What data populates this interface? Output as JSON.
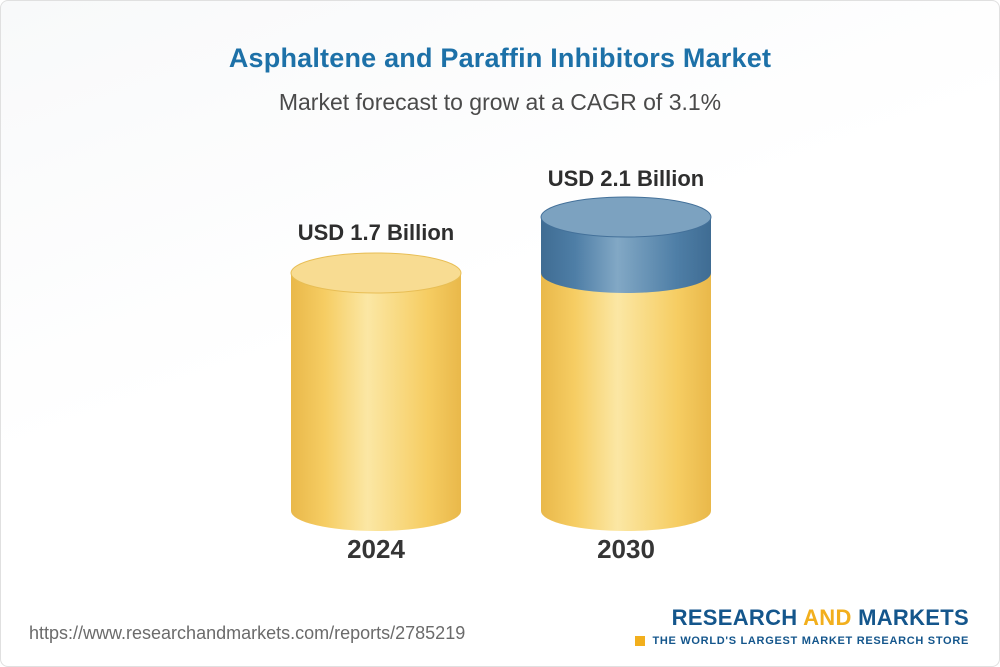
{
  "chart_data": {
    "type": "bar",
    "variant": "3d-cylinder",
    "title": "Asphaltene and Paraffin Inhibitors Market",
    "subtitle": "Market forecast to grow at a CAGR of 3.1%",
    "categories": [
      "2024",
      "2030"
    ],
    "values": [
      1.7,
      2.1
    ],
    "value_labels": [
      "USD 1.7 Billion",
      "USD 2.1 Billion"
    ],
    "unit": "USD Billion",
    "cagr": "3.1%",
    "ylim": [
      0,
      2.1
    ],
    "legend": "none",
    "grid": "off",
    "bars": [
      {
        "category": "2024",
        "label": "USD 1.7 Billion",
        "segments": [
          {
            "value": 1.7,
            "color_key": "gold"
          }
        ]
      },
      {
        "category": "2030",
        "label": "USD 2.1 Billion",
        "segments": [
          {
            "value": 1.7,
            "color_key": "gold"
          },
          {
            "value": 0.4,
            "color_key": "blue"
          }
        ]
      }
    ],
    "colors": {
      "gold": {
        "body_dark": "#E9B84A",
        "body": "#F6CD63",
        "body_light": "#FBE7A4",
        "top": "#F8DC92",
        "top_edge": "#E8BE55"
      },
      "blue": {
        "body_dark": "#3F6C93",
        "body": "#4E7EA6",
        "body_light": "#82A8C5",
        "top": "#7CA2C0",
        "top_edge": "#44719A"
      }
    }
  },
  "footer": {
    "url": "https://www.researchandmarkets.com/reports/2785219",
    "logo": {
      "part1": "RESEARCH",
      "part2": "AND",
      "part3": "MARKETS",
      "tagline": "THE WORLD'S LARGEST MARKET RESEARCH STORE"
    },
    "colors": {
      "blue": "#14568C",
      "gold": "#F2AF1D"
    }
  },
  "theme": {
    "title_color": "#1D71A8",
    "subtitle_color": "#4A4A4A",
    "label_color": "#2E2E2E",
    "category_color": "#353535",
    "url_color": "#6B6B6B",
    "border_color": "#E0E0E0"
  }
}
